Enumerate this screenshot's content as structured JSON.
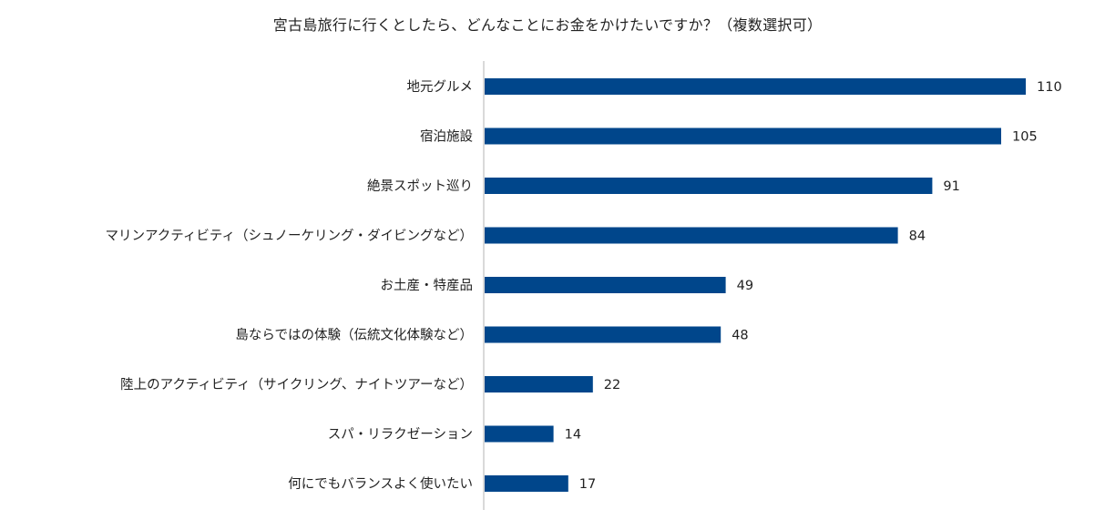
{
  "chart_data": {
    "type": "bar",
    "orientation": "horizontal",
    "title": "宮古島旅行に行くとしたら、どんなことにお金をかけたいですか？（複数選択可）",
    "categories": [
      "地元グルメ",
      "宿泊施設",
      "絶景スポット巡り",
      "マリンアクティビティ（シュノーケリング・ダイビングなど）",
      "お土産・特産品",
      "島ならではの体験（伝統文化体験など）",
      "陸上のアクティビティ（サイクリング、ナイトツアーなど）",
      "スパ・リラクゼーション",
      "何にでもバランスよく使いたい"
    ],
    "values": [
      110,
      105,
      91,
      84,
      49,
      48,
      22,
      14,
      17
    ],
    "xlabel": "",
    "ylabel": "",
    "xlim": [
      0,
      110
    ],
    "grid": false,
    "legend": "none",
    "bar_color": "#00468b",
    "axis_color": "#d9d9d9"
  }
}
